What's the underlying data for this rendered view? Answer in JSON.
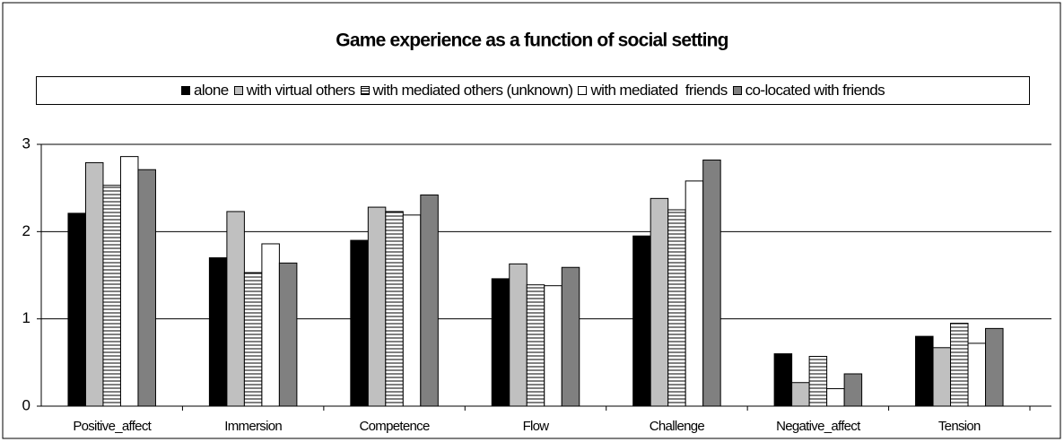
{
  "chart_data": {
    "type": "bar",
    "title": "Game experience as a function of social setting",
    "categories": [
      "Positive_affect",
      "Immersion",
      "Competence",
      "Flow",
      "Challenge",
      "Negative_affect",
      "Tension"
    ],
    "series": [
      {
        "name": "alone",
        "color": "#000000",
        "values": [
          2.21,
          1.7,
          1.9,
          1.46,
          1.95,
          0.6,
          0.8
        ]
      },
      {
        "name": "with virtual others",
        "color": "#c0c0c0",
        "values": [
          2.79,
          2.23,
          2.28,
          1.63,
          2.38,
          0.27,
          0.67
        ]
      },
      {
        "name": "with mediated others (unknown)",
        "color": "#ffffff",
        "pattern": "horizontal-lines",
        "values": [
          2.53,
          1.53,
          2.23,
          1.39,
          2.25,
          0.57,
          0.95
        ]
      },
      {
        "name": "with mediated  friends",
        "color": "#ffffff",
        "values": [
          2.86,
          1.86,
          2.19,
          1.38,
          2.58,
          0.2,
          0.72
        ]
      },
      {
        "name": "co-located with friends",
        "color": "#808080",
        "values": [
          2.71,
          1.64,
          2.42,
          1.59,
          2.82,
          0.37,
          0.89
        ]
      }
    ],
    "ylim": [
      0,
      3
    ],
    "yticks": [
      0,
      1,
      2,
      3
    ],
    "grid": true,
    "legend": "top"
  }
}
